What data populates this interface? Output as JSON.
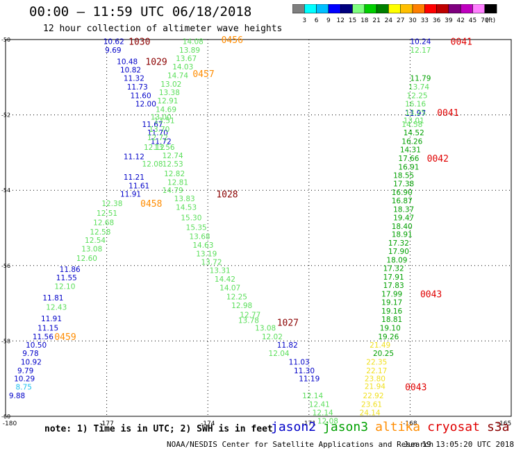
{
  "header": {
    "title": "00:00 – 11:59 UTC 06/18/2018",
    "subtitle": "12 hour collection of altimeter wave heights"
  },
  "colorbar": {
    "labels": [
      "3",
      "6",
      "9",
      "12",
      "15",
      "18",
      "21",
      "24",
      "27",
      "30",
      "33",
      "36",
      "39",
      "42",
      "45",
      "70"
    ],
    "unit": "(ft)",
    "colors": [
      "#7f7f7f",
      "#00ffff",
      "#00bfff",
      "#0000ff",
      "#00007f",
      "#7fff7f",
      "#00cf00",
      "#007f00",
      "#ffff00",
      "#ffbf00",
      "#ff7f00",
      "#ff0000",
      "#bf0000",
      "#7f007f",
      "#bf00bf",
      "#ff7fff",
      "#000000"
    ]
  },
  "footer": {
    "note": "note: 1) Time is in UTC; 2) SWH is in feet",
    "credit": "NOAA/NESDIS Center for Satellite Applications and Research",
    "timestamp": "Jun 19 13:05:20 UTC 2018"
  },
  "chart_data": {
    "type": "scatter",
    "title": "00:00 – 11:59 UTC 06/18/2018",
    "subtitle": "12 hour collection of altimeter wave heights",
    "xlim": [
      -180,
      -165
    ],
    "ylim": [
      -60,
      -50
    ],
    "x_ticks": [
      -180,
      -177,
      -174,
      -171,
      -168,
      -165
    ],
    "y_ticks": [
      -50,
      -52,
      -54,
      -56,
      -58,
      -60
    ],
    "grid": true,
    "legend_position": "bottom",
    "series": [
      {
        "name": "jason2",
        "color": "#0000c8",
        "points": [
          {
            "x": -177.1,
            "y": -50.05,
            "v": "10.62"
          },
          {
            "x": -177.05,
            "y": -50.28,
            "v": "9.69"
          },
          {
            "x": -176.7,
            "y": -50.58,
            "v": "10.48"
          },
          {
            "x": -176.6,
            "y": -50.8,
            "v": "10.82"
          },
          {
            "x": -176.5,
            "y": -51.02,
            "v": "11.32"
          },
          {
            "x": -176.4,
            "y": -51.25,
            "v": "11.73"
          },
          {
            "x": -176.3,
            "y": -51.48,
            "v": "11.60"
          },
          {
            "x": -176.15,
            "y": -51.7,
            "v": "12.00"
          },
          {
            "x": -175.95,
            "y": -52.25,
            "v": "11.67"
          },
          {
            "x": -175.8,
            "y": -52.47,
            "v": "11.70"
          },
          {
            "x": -175.7,
            "y": -52.7,
            "v": "11.72"
          },
          {
            "x": -176.5,
            "y": -53.1,
            "v": "11.12"
          },
          {
            "x": -176.5,
            "y": -53.65,
            "v": "11.21"
          },
          {
            "x": -176.35,
            "y": -53.88,
            "v": "11.61"
          },
          {
            "x": -176.6,
            "y": -54.1,
            "v": "11.91"
          },
          {
            "x": -178.4,
            "y": -56.1,
            "v": "11.86"
          },
          {
            "x": -178.5,
            "y": -56.32,
            "v": "11.55"
          },
          {
            "x": -178.9,
            "y": -56.85,
            "v": "11.81"
          },
          {
            "x": -178.95,
            "y": -57.4,
            "v": "11.91"
          },
          {
            "x": -179.05,
            "y": -57.65,
            "v": "11.15"
          },
          {
            "x": -179.2,
            "y": -57.88,
            "v": "11.56"
          },
          {
            "x": -179.4,
            "y": -58.1,
            "v": "10.50"
          },
          {
            "x": -179.5,
            "y": -58.32,
            "v": "9.78"
          },
          {
            "x": -179.55,
            "y": -58.55,
            "v": "10.92"
          },
          {
            "x": -179.65,
            "y": -58.78,
            "v": "9.79"
          },
          {
            "x": -179.75,
            "y": -59.0,
            "v": "10.29"
          },
          {
            "x": -179.9,
            "y": -59.45,
            "v": "9.88"
          },
          {
            "x": -171.95,
            "y": -58.1,
            "v": "11.82"
          },
          {
            "x": -171.6,
            "y": -58.55,
            "v": "11.03"
          },
          {
            "x": -171.45,
            "y": -58.78,
            "v": "11.30"
          },
          {
            "x": -171.3,
            "y": -59.0,
            "v": "11.19"
          },
          {
            "x": -168.0,
            "y": -50.05,
            "v": "10.24"
          },
          {
            "x": -168.15,
            "y": -51.95,
            "v": "11.97"
          }
        ]
      },
      {
        "name": "jason3",
        "color": "#00a000",
        "points": [
          {
            "x": -168.0,
            "y": -51.02,
            "v": "11.79"
          },
          {
            "x": -168.2,
            "y": -52.47,
            "v": "14.52"
          },
          {
            "x": -168.25,
            "y": -52.7,
            "v": "16.26"
          },
          {
            "x": -168.3,
            "y": -52.92,
            "v": "14.31"
          },
          {
            "x": -168.35,
            "y": -53.15,
            "v": "17.66"
          },
          {
            "x": -168.35,
            "y": -53.38,
            "v": "16.91"
          },
          {
            "x": -168.5,
            "y": -53.6,
            "v": "18.55"
          },
          {
            "x": -168.5,
            "y": -53.82,
            "v": "17.38"
          },
          {
            "x": -168.55,
            "y": -54.05,
            "v": "16.90"
          },
          {
            "x": -168.55,
            "y": -54.27,
            "v": "16.87"
          },
          {
            "x": -168.5,
            "y": -54.5,
            "v": "18.37"
          },
          {
            "x": -168.5,
            "y": -54.72,
            "v": "19.47"
          },
          {
            "x": -168.55,
            "y": -54.95,
            "v": "18.40"
          },
          {
            "x": -168.55,
            "y": -55.17,
            "v": "18.91"
          },
          {
            "x": -168.65,
            "y": -55.4,
            "v": "17.32"
          },
          {
            "x": -168.65,
            "y": -55.62,
            "v": "17.90"
          },
          {
            "x": -168.7,
            "y": -55.85,
            "v": "18.09"
          },
          {
            "x": -168.8,
            "y": -56.07,
            "v": "17.32"
          },
          {
            "x": -168.8,
            "y": -56.3,
            "v": "17.91"
          },
          {
            "x": -168.8,
            "y": -56.52,
            "v": "17.83"
          },
          {
            "x": -168.85,
            "y": -56.75,
            "v": "17.99"
          },
          {
            "x": -168.85,
            "y": -56.97,
            "v": "19.17"
          },
          {
            "x": -168.85,
            "y": -57.2,
            "v": "19.16"
          },
          {
            "x": -168.85,
            "y": -57.42,
            "v": "18.81"
          },
          {
            "x": -168.9,
            "y": -57.65,
            "v": "19.10"
          },
          {
            "x": -168.95,
            "y": -57.88,
            "v": "19.26"
          },
          {
            "x": -169.1,
            "y": -58.32,
            "v": "20.25"
          }
        ]
      },
      {
        "name": "sentinel/light",
        "color": "#5ade5a",
        "points": [
          {
            "x": -174.75,
            "y": -50.05,
            "v": "14.08"
          },
          {
            "x": -174.85,
            "y": -50.28,
            "v": "13.89"
          },
          {
            "x": -174.95,
            "y": -50.5,
            "v": "13.67"
          },
          {
            "x": -175.05,
            "y": -50.72,
            "v": "14.03"
          },
          {
            "x": -175.2,
            "y": -50.95,
            "v": "14.74"
          },
          {
            "x": -175.4,
            "y": -51.18,
            "v": "13.02"
          },
          {
            "x": -175.45,
            "y": -51.4,
            "v": "13.38"
          },
          {
            "x": -175.5,
            "y": -51.62,
            "v": "12.91"
          },
          {
            "x": -175.55,
            "y": -51.85,
            "v": "14.69"
          },
          {
            "x": -175.7,
            "y": -52.05,
            "v": "13.00"
          },
          {
            "x": -175.6,
            "y": -52.15,
            "v": "13.51"
          },
          {
            "x": -175.75,
            "y": -52.38,
            "v": "13.70"
          },
          {
            "x": -175.8,
            "y": -52.6,
            "v": "12.72"
          },
          {
            "x": -175.9,
            "y": -52.85,
            "v": "12.12"
          },
          {
            "x": -175.6,
            "y": -52.85,
            "v": "13.56"
          },
          {
            "x": -175.35,
            "y": -53.08,
            "v": "12.74"
          },
          {
            "x": -175.95,
            "y": -53.3,
            "v": "12.08"
          },
          {
            "x": -175.35,
            "y": -53.3,
            "v": "12.53"
          },
          {
            "x": -175.3,
            "y": -53.55,
            "v": "12.82"
          },
          {
            "x": -175.2,
            "y": -53.78,
            "v": "12.81"
          },
          {
            "x": -175.35,
            "y": -54.0,
            "v": "14.79"
          },
          {
            "x": -175.0,
            "y": -54.22,
            "v": "13.83"
          },
          {
            "x": -177.15,
            "y": -54.35,
            "v": "12.38"
          },
          {
            "x": -174.95,
            "y": -54.45,
            "v": "14.53"
          },
          {
            "x": -177.3,
            "y": -54.6,
            "v": "12.51"
          },
          {
            "x": -174.8,
            "y": -54.72,
            "v": "15.30"
          },
          {
            "x": -177.4,
            "y": -54.85,
            "v": "12.68"
          },
          {
            "x": -174.65,
            "y": -54.98,
            "v": "15.35"
          },
          {
            "x": -177.5,
            "y": -55.1,
            "v": "12.58"
          },
          {
            "x": -174.55,
            "y": -55.22,
            "v": "13.68"
          },
          {
            "x": -177.65,
            "y": -55.32,
            "v": "12.54"
          },
          {
            "x": -174.45,
            "y": -55.45,
            "v": "14.63"
          },
          {
            "x": -177.75,
            "y": -55.55,
            "v": "13.08"
          },
          {
            "x": -174.35,
            "y": -55.68,
            "v": "13.19"
          },
          {
            "x": -177.9,
            "y": -55.8,
            "v": "12.60"
          },
          {
            "x": -174.2,
            "y": -55.9,
            "v": "13.72"
          },
          {
            "x": -173.95,
            "y": -56.12,
            "v": "13.31"
          },
          {
            "x": -173.8,
            "y": -56.35,
            "v": "14.42"
          },
          {
            "x": -178.55,
            "y": -56.55,
            "v": "12.10"
          },
          {
            "x": -173.65,
            "y": -56.58,
            "v": "14.07"
          },
          {
            "x": -173.45,
            "y": -56.82,
            "v": "12.25"
          },
          {
            "x": -173.3,
            "y": -57.05,
            "v": "12.98"
          },
          {
            "x": -178.8,
            "y": -57.1,
            "v": "12.43"
          },
          {
            "x": -173.05,
            "y": -57.3,
            "v": "12.77"
          },
          {
            "x": -173.1,
            "y": -57.45,
            "v": "13.78"
          },
          {
            "x": -172.6,
            "y": -57.65,
            "v": "13.08"
          },
          {
            "x": -172.4,
            "y": -57.88,
            "v": "12.02"
          },
          {
            "x": -172.2,
            "y": -58.32,
            "v": "12.04"
          },
          {
            "x": -171.2,
            "y": -59.45,
            "v": "12.14"
          },
          {
            "x": -171.0,
            "y": -59.68,
            "v": "12.41"
          },
          {
            "x": -170.9,
            "y": -59.9,
            "v": "12.14"
          },
          {
            "x": -170.75,
            "y": -60.12,
            "v": "12.08"
          },
          {
            "x": -168.0,
            "y": -50.28,
            "v": "12.17"
          },
          {
            "x": -168.05,
            "y": -51.25,
            "v": "13.74"
          },
          {
            "x": -168.1,
            "y": -51.48,
            "v": "12.25"
          },
          {
            "x": -168.15,
            "y": -51.7,
            "v": "16.16"
          },
          {
            "x": -168.15,
            "y": -51.93,
            "v": "13.25"
          },
          {
            "x": -168.2,
            "y": -52.15,
            "v": "13.01"
          },
          {
            "x": -168.25,
            "y": -52.25,
            "v": "14.58"
          }
        ]
      },
      {
        "name": "altika",
        "color": "#f0e020",
        "points": [
          {
            "x": -169.2,
            "y": -58.1,
            "v": "21.49"
          },
          {
            "x": -169.3,
            "y": -58.55,
            "v": "22.35"
          },
          {
            "x": -169.3,
            "y": -58.78,
            "v": "22.17"
          },
          {
            "x": -169.35,
            "y": -59.0,
            "v": "23.80"
          },
          {
            "x": -169.35,
            "y": -59.2,
            "v": "21.94"
          },
          {
            "x": -169.4,
            "y": -59.45,
            "v": "22.92"
          },
          {
            "x": -169.45,
            "y": -59.68,
            "v": "23.61"
          },
          {
            "x": -169.5,
            "y": -59.9,
            "v": "24.14"
          }
        ]
      },
      {
        "name": "cyan",
        "color": "#1ec0f0",
        "points": [
          {
            "x": -179.7,
            "y": -59.22,
            "v": "8.75"
          }
        ]
      }
    ],
    "annotations": [
      {
        "text": "1030",
        "x": -176.35,
        "y": -50.05,
        "color": "#8b0000"
      },
      {
        "text": "1029",
        "x": -175.85,
        "y": -50.58,
        "color": "#8b0000"
      },
      {
        "text": "1028",
        "x": -173.75,
        "y": -54.1,
        "color": "#8b0000"
      },
      {
        "text": "1027",
        "x": -171.95,
        "y": -57.5,
        "color": "#8b0000"
      },
      {
        "text": "0456",
        "x": -173.6,
        "y": -50.0,
        "color": "#ff8c00"
      },
      {
        "text": "0457",
        "x": -174.45,
        "y": -50.9,
        "color": "#ff8c00"
      },
      {
        "text": "0458",
        "x": -176.0,
        "y": -54.35,
        "color": "#ff8c00"
      },
      {
        "text": "0459",
        "x": -178.55,
        "y": -57.88,
        "color": "#ff8c00"
      },
      {
        "text": "0041",
        "x": -166.8,
        "y": -50.05,
        "color": "#e00000"
      },
      {
        "text": "0041",
        "x": -167.2,
        "y": -51.93,
        "color": "#e00000"
      },
      {
        "text": "0042",
        "x": -167.5,
        "y": -53.15,
        "color": "#e00000"
      },
      {
        "text": "0043",
        "x": -167.7,
        "y": -56.75,
        "color": "#e00000"
      },
      {
        "text": "0043",
        "x": -168.15,
        "y": -59.22,
        "color": "#e00000"
      }
    ],
    "legend": [
      {
        "name": "jason2",
        "color": "#0000c8"
      },
      {
        "name": "jason3",
        "color": "#00a000"
      },
      {
        "name": "altika",
        "color": "#ff8c00"
      },
      {
        "name": "cryosat",
        "color": "#e00000"
      },
      {
        "name": "s3a",
        "color": "#8b0000"
      }
    ]
  }
}
